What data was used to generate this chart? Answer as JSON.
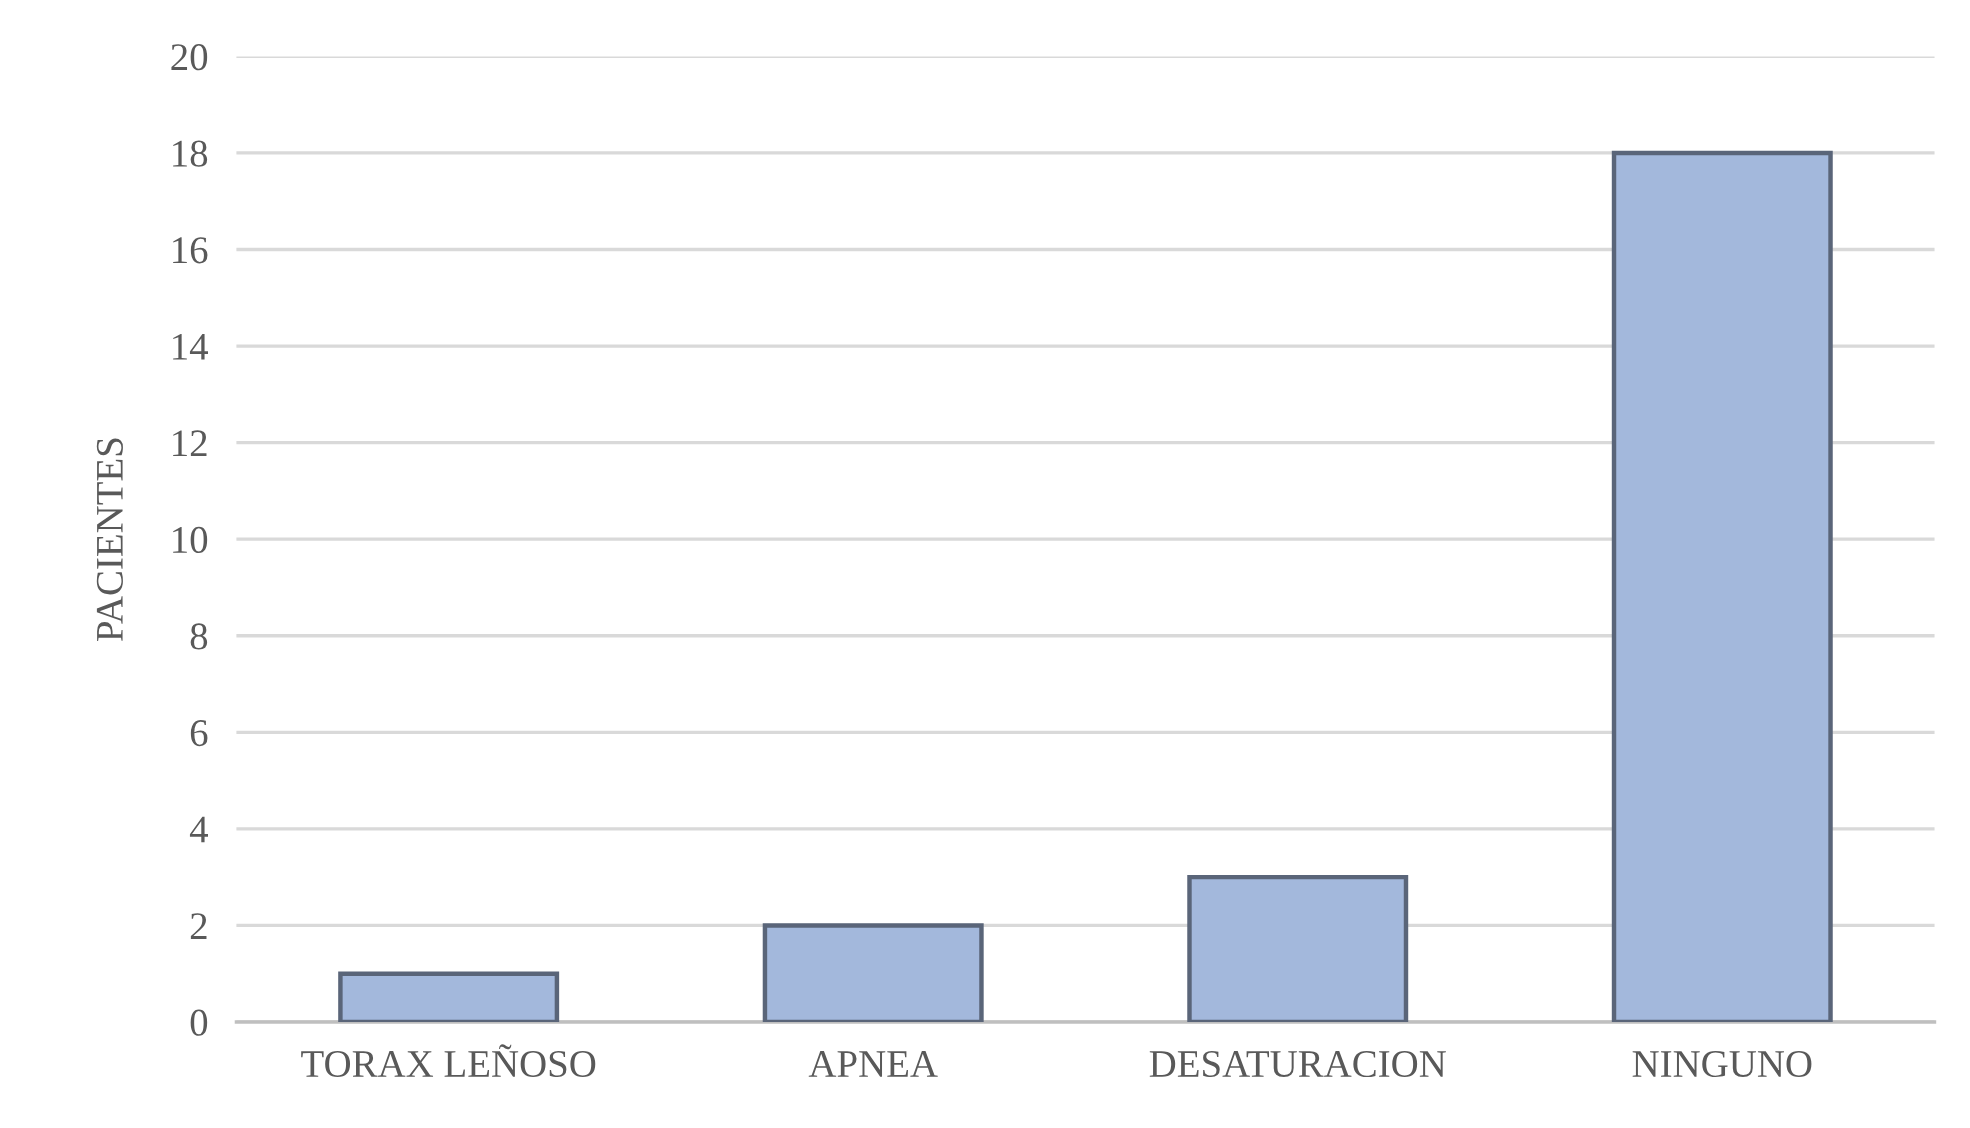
{
  "chart_data": {
    "type": "bar",
    "ylabel": "PACIENTES",
    "categories": [
      "TORAX LEÑOSO",
      "APNEA",
      "DESATURACION",
      "NINGUNO"
    ],
    "values": [
      1,
      2,
      3,
      18
    ],
    "color": "#a3b8dc",
    "ylim": [
      0,
      20
    ],
    "yticks": [
      0,
      2,
      4,
      6,
      8,
      10,
      12,
      14,
      16,
      18,
      20
    ],
    "grid": "y"
  }
}
